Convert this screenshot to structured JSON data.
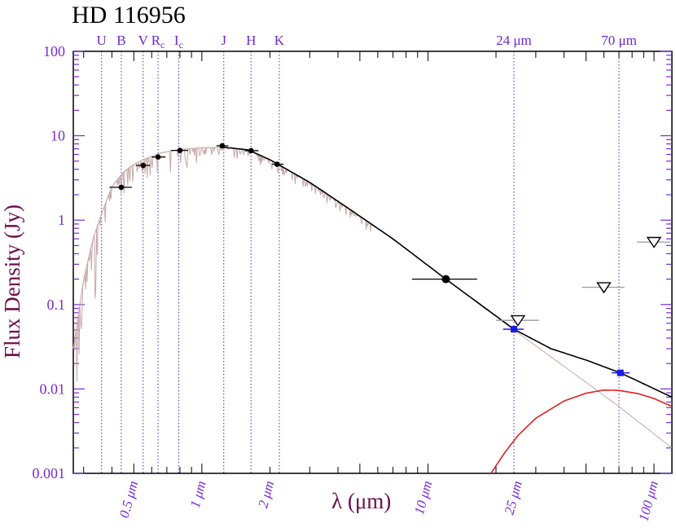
{
  "chart_data": {
    "type": "scatter",
    "title": "HD 116956",
    "xlabel": "λ (μm)",
    "ylabel": "Flux Density (Jy)",
    "x_scale": "log",
    "y_scale": "log",
    "xlim": [
      0.27,
      120
    ],
    "ylim": [
      0.001,
      100
    ],
    "y_ticks": [
      {
        "value": 100,
        "label": "100"
      },
      {
        "value": 10,
        "label": "10"
      },
      {
        "value": 1,
        "label": "1"
      },
      {
        "value": 0.1,
        "label": "0.1"
      },
      {
        "value": 0.01,
        "label": "0.01"
      },
      {
        "value": 0.001,
        "label": "0.001"
      }
    ],
    "x_tick_labels": [
      {
        "value": 0.5,
        "label": "0.5 μm"
      },
      {
        "value": 1,
        "label": "1 μm"
      },
      {
        "value": 2,
        "label": "2 μm"
      },
      {
        "value": 10,
        "label": "10 μm"
      },
      {
        "value": 25,
        "label": "25 μm"
      },
      {
        "value": 100,
        "label": "100 μm"
      }
    ],
    "bands": [
      {
        "name": "U",
        "sub": "",
        "wavelength": 0.36
      },
      {
        "name": "B",
        "sub": "",
        "wavelength": 0.44
      },
      {
        "name": "V",
        "sub": "",
        "wavelength": 0.55
      },
      {
        "name": "R",
        "sub": "c",
        "wavelength": 0.64
      },
      {
        "name": "I",
        "sub": "c",
        "wavelength": 0.79
      },
      {
        "name": "J",
        "sub": "",
        "wavelength": 1.25
      },
      {
        "name": "H",
        "sub": "",
        "wavelength": 1.65
      },
      {
        "name": "K",
        "sub": "",
        "wavelength": 2.2
      },
      {
        "name": "24 μm",
        "sub": "",
        "wavelength": 24
      },
      {
        "name": "70 μm",
        "sub": "",
        "wavelength": 70
      }
    ],
    "photometry": [
      {
        "x": 0.44,
        "y": 2.45,
        "xerr": [
          0.39,
          0.49
        ]
      },
      {
        "x": 0.55,
        "y": 4.45,
        "xerr": [
          0.51,
          0.59
        ]
      },
      {
        "x": 0.64,
        "y": 5.6,
        "xerr": [
          0.6,
          0.69
        ]
      },
      {
        "x": 0.8,
        "y": 6.7,
        "xerr": [
          0.73,
          0.87
        ]
      },
      {
        "x": 1.23,
        "y": 7.6,
        "xerr": [
          1.16,
          1.31
        ]
      },
      {
        "x": 1.65,
        "y": 6.65,
        "xerr": [
          1.55,
          1.78
        ]
      },
      {
        "x": 2.15,
        "y": 4.6,
        "xerr": [
          2.04,
          2.3
        ]
      },
      {
        "x": 12.0,
        "y": 0.2,
        "xerr": [
          8.5,
          16.5
        ]
      }
    ],
    "mips_detections": [
      {
        "x": 24,
        "y": 0.051,
        "xerr": [
          21.5,
          26.5
        ]
      },
      {
        "x": 71,
        "y": 0.0155,
        "xerr": [
          65,
          78
        ]
      }
    ],
    "upper_limits": [
      {
        "x": 25,
        "y": 0.065,
        "xerr": [
          20,
          31
        ]
      },
      {
        "x": 60,
        "y": 0.16,
        "xerr": [
          48,
          74
        ]
      },
      {
        "x": 100,
        "y": 0.55,
        "xerr": [
          84,
          118
        ]
      }
    ],
    "stellar_photosphere": {
      "color": "#c7a8a8",
      "anchors": [
        {
          "x": 0.27,
          "y": 0.03
        },
        {
          "x": 0.3,
          "y": 0.2
        },
        {
          "x": 0.33,
          "y": 0.6
        },
        {
          "x": 0.36,
          "y": 1.2
        },
        {
          "x": 0.4,
          "y": 2.5
        },
        {
          "x": 0.45,
          "y": 3.7
        },
        {
          "x": 0.5,
          "y": 4.6
        },
        {
          "x": 0.55,
          "y": 5.2
        },
        {
          "x": 0.65,
          "y": 6.2
        },
        {
          "x": 0.8,
          "y": 6.9
        },
        {
          "x": 1.0,
          "y": 7.2
        },
        {
          "x": 1.25,
          "y": 7.3
        },
        {
          "x": 1.6,
          "y": 6.8
        },
        {
          "x": 2.0,
          "y": 5.2
        },
        {
          "x": 3.0,
          "y": 2.8
        },
        {
          "x": 4.5,
          "y": 1.35
        },
        {
          "x": 7.0,
          "y": 0.6
        },
        {
          "x": 12.0,
          "y": 0.2
        },
        {
          "x": 24.0,
          "y": 0.05
        },
        {
          "x": 50.0,
          "y": 0.012
        },
        {
          "x": 71.0,
          "y": 0.006
        },
        {
          "x": 120.0,
          "y": 0.002
        }
      ]
    },
    "total_model": {
      "color": "#000000",
      "anchors": [
        {
          "x": 1.25,
          "y": 7.3
        },
        {
          "x": 1.6,
          "y": 6.8
        },
        {
          "x": 2.0,
          "y": 5.2
        },
        {
          "x": 3.0,
          "y": 2.8
        },
        {
          "x": 4.5,
          "y": 1.35
        },
        {
          "x": 7.0,
          "y": 0.6
        },
        {
          "x": 12.0,
          "y": 0.2
        },
        {
          "x": 18.0,
          "y": 0.09
        },
        {
          "x": 24.0,
          "y": 0.051
        },
        {
          "x": 35.0,
          "y": 0.03
        },
        {
          "x": 50.0,
          "y": 0.022
        },
        {
          "x": 71.0,
          "y": 0.0155
        },
        {
          "x": 90.0,
          "y": 0.0115
        },
        {
          "x": 120.0,
          "y": 0.008
        }
      ]
    },
    "dust_excess": {
      "color": "#e0201e",
      "anchors": [
        {
          "x": 19.0,
          "y": 0.001
        },
        {
          "x": 22.0,
          "y": 0.0018
        },
        {
          "x": 25.0,
          "y": 0.0028
        },
        {
          "x": 30.0,
          "y": 0.0045
        },
        {
          "x": 40.0,
          "y": 0.0072
        },
        {
          "x": 50.0,
          "y": 0.0089
        },
        {
          "x": 60.0,
          "y": 0.0097
        },
        {
          "x": 70.0,
          "y": 0.0096
        },
        {
          "x": 85.0,
          "y": 0.0088
        },
        {
          "x": 100.0,
          "y": 0.0077
        },
        {
          "x": 120.0,
          "y": 0.0062
        }
      ]
    },
    "grid": false,
    "legend": "none"
  }
}
